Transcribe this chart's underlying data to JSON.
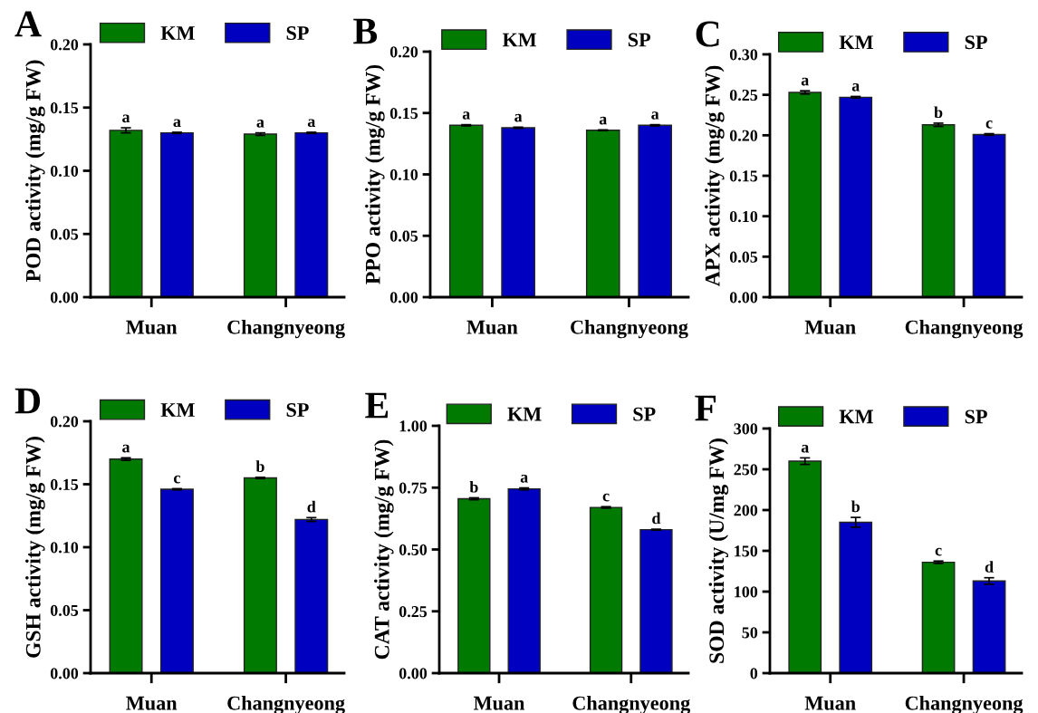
{
  "chart_data": [
    {
      "type": "bar",
      "title": "A",
      "ylabel": "POD activity (mg/g FW)",
      "categories": [
        "Muan",
        "Changnyeong"
      ],
      "ylim": [
        0,
        0.2
      ],
      "yticks": [
        {
          "value": 0,
          "label": "0.00"
        },
        {
          "value": 0.05,
          "label": "0.05"
        },
        {
          "value": 0.1,
          "label": "0.10"
        },
        {
          "value": 0.15,
          "label": "0.15"
        },
        {
          "value": 0.2,
          "label": "0.20"
        }
      ],
      "legend": "top",
      "grid": false,
      "series": [
        {
          "name": "KM",
          "color": "#007a00",
          "values": [
            0.132,
            0.129
          ],
          "errors": [
            0.002,
            0.001
          ],
          "value_labels": [
            "a",
            "a"
          ]
        },
        {
          "name": "SP",
          "color": "#0000c0",
          "values": [
            0.13,
            0.13
          ],
          "errors": [
            0.0005,
            0.0005
          ],
          "value_labels": [
            "a",
            "a"
          ]
        }
      ]
    },
    {
      "type": "bar",
      "title": "B",
      "ylabel": "PPO activity (mg/g FW)",
      "categories": [
        "Muan",
        "Changnyeong"
      ],
      "ylim": [
        0,
        0.2
      ],
      "yticks": [
        {
          "value": 0,
          "label": "0.00"
        },
        {
          "value": 0.05,
          "label": "0.05"
        },
        {
          "value": 0.1,
          "label": "0.10"
        },
        {
          "value": 0.15,
          "label": "0.15"
        },
        {
          "value": 0.2,
          "label": "0.20"
        }
      ],
      "legend": "top",
      "grid": false,
      "series": [
        {
          "name": "KM",
          "color": "#007a00",
          "values": [
            0.14,
            0.136
          ],
          "errors": [
            0.0005,
            0.0003
          ],
          "value_labels": [
            "a",
            "a"
          ]
        },
        {
          "name": "SP",
          "color": "#0000c0",
          "values": [
            0.138,
            0.14
          ],
          "errors": [
            0.0005,
            0.0005
          ],
          "value_labels": [
            "a",
            "a"
          ]
        }
      ]
    },
    {
      "type": "bar",
      "title": "C",
      "ylabel": "APX activity (mg/g FW)",
      "categories": [
        "Muan",
        "Changnyeong"
      ],
      "ylim": [
        0,
        0.3
      ],
      "yticks": [
        {
          "value": 0,
          "label": "0.00"
        },
        {
          "value": 0.05,
          "label": "0.05"
        },
        {
          "value": 0.1,
          "label": "0.10"
        },
        {
          "value": 0.15,
          "label": "0.15"
        },
        {
          "value": 0.2,
          "label": "0.20"
        },
        {
          "value": 0.25,
          "label": "0.25"
        },
        {
          "value": 0.3,
          "label": "0.30"
        }
      ],
      "legend": "top",
      "grid": false,
      "series": [
        {
          "name": "KM",
          "color": "#007a00",
          "values": [
            0.253,
            0.213
          ],
          "errors": [
            0.002,
            0.002
          ],
          "value_labels": [
            "a",
            "b"
          ]
        },
        {
          "name": "SP",
          "color": "#0000c0",
          "values": [
            0.247,
            0.201
          ],
          "errors": [
            0.001,
            0.001
          ],
          "value_labels": [
            "a",
            "c"
          ]
        }
      ]
    },
    {
      "type": "bar",
      "title": "D",
      "ylabel": "GSH activity (mg/g FW)",
      "categories": [
        "Muan",
        "Changnyeong"
      ],
      "ylim": [
        0,
        0.2
      ],
      "yticks": [
        {
          "value": 0,
          "label": "0.00"
        },
        {
          "value": 0.05,
          "label": "0.05"
        },
        {
          "value": 0.1,
          "label": "0.10"
        },
        {
          "value": 0.15,
          "label": "0.15"
        },
        {
          "value": 0.2,
          "label": "0.20"
        }
      ],
      "legend": "top",
      "grid": false,
      "series": [
        {
          "name": "KM",
          "color": "#007a00",
          "values": [
            0.17,
            0.155
          ],
          "errors": [
            0.001,
            0.0005
          ],
          "value_labels": [
            "a",
            "b"
          ]
        },
        {
          "name": "SP",
          "color": "#0000c0",
          "values": [
            0.146,
            0.122
          ],
          "errors": [
            0.0005,
            0.0015
          ],
          "value_labels": [
            "c",
            "d"
          ]
        }
      ]
    },
    {
      "type": "bar",
      "title": "E",
      "ylabel": "CAT activity (mg/g FW)",
      "categories": [
        "Muan",
        "Changnyeong"
      ],
      "ylim": [
        0,
        1
      ],
      "yticks": [
        {
          "value": 0,
          "label": "0.00"
        },
        {
          "value": 0.25,
          "label": "0.25"
        },
        {
          "value": 0.5,
          "label": "0.50"
        },
        {
          "value": 0.75,
          "label": "0.75"
        },
        {
          "value": 1,
          "label": "1.00"
        }
      ],
      "legend": "top",
      "grid": false,
      "series": [
        {
          "name": "KM",
          "color": "#007a00",
          "values": [
            0.705,
            0.67
          ],
          "errors": [
            0.004,
            0.003
          ],
          "value_labels": [
            "b",
            "c"
          ]
        },
        {
          "name": "SP",
          "color": "#0000c0",
          "values": [
            0.745,
            0.58
          ],
          "errors": [
            0.004,
            0.002
          ],
          "value_labels": [
            "a",
            "d"
          ]
        }
      ]
    },
    {
      "type": "bar",
      "title": "F",
      "ylabel": "SOD activity (U/mg FW)",
      "categories": [
        "Muan",
        "Changnyeong"
      ],
      "ylim": [
        0,
        300
      ],
      "yticks": [
        0,
        50,
        100,
        150,
        200,
        250,
        300
      ],
      "legend": "top",
      "grid": false,
      "series": [
        {
          "name": "KM",
          "color": "#007a00",
          "values": [
            260,
            136
          ],
          "errors": [
            4,
            1.5
          ],
          "value_labels": [
            "a",
            "c"
          ]
        },
        {
          "name": "SP",
          "color": "#0000c0",
          "values": [
            185,
            113
          ],
          "errors": [
            6,
            4
          ],
          "value_labels": [
            "b",
            "d"
          ]
        }
      ]
    }
  ]
}
